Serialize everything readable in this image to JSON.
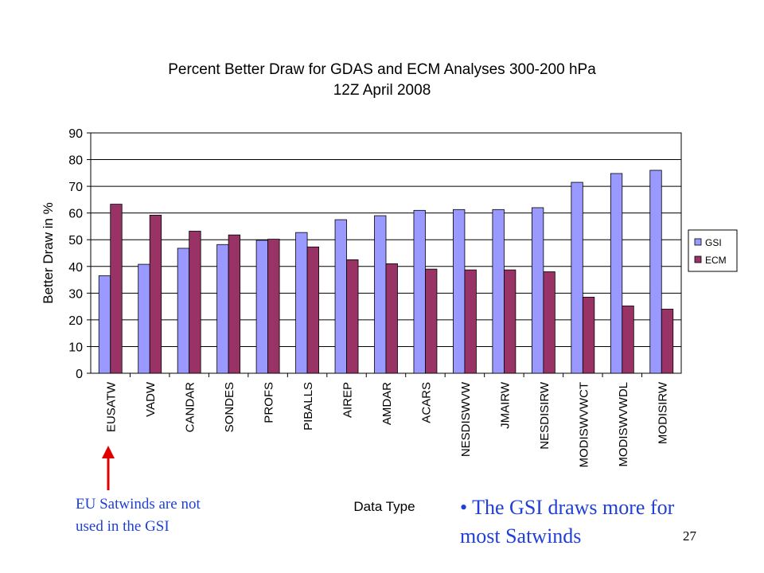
{
  "chart_data": {
    "type": "bar",
    "title": "Percent Better Draw for GDAS and ECM Analyses 300-200 hPa",
    "subtitle": "12Z April 2008",
    "xlabel": "Data Type",
    "ylabel": "Better Draw in %",
    "ylim": [
      0,
      90
    ],
    "yticks": [
      0,
      10,
      20,
      30,
      40,
      50,
      60,
      70,
      80,
      90
    ],
    "grid": true,
    "legend_position": "right",
    "categories": [
      "EUSATW",
      "VADW",
      "CANDAR",
      "SONDES",
      "PROFS",
      "PIBALLS",
      "AIREP",
      "AMDAR",
      "ACARS",
      "NESDISWVW",
      "JMAIRW",
      "NESDISIRW",
      "MODISWVWCT",
      "MODISWVWDL",
      "MODISIRW"
    ],
    "series": [
      {
        "name": "GSI",
        "color": "#9999ff",
        "values": [
          36.5,
          40.8,
          46.8,
          48.2,
          49.8,
          52.7,
          57.5,
          59.0,
          61.0,
          61.3,
          61.3,
          62.0,
          71.5,
          74.8,
          76.0
        ]
      },
      {
        "name": "ECM",
        "color": "#993366",
        "values": [
          63.3,
          59.2,
          53.2,
          51.8,
          50.2,
          47.3,
          42.5,
          41.0,
          39.0,
          38.7,
          38.7,
          38.0,
          28.5,
          25.2,
          24.0
        ]
      }
    ]
  },
  "annotations": {
    "eu_note_line1": "EU Satwinds are not",
    "eu_note_line2": "used in the GSI",
    "gsi_note_line1": "• The GSI draws more for",
    "gsi_note_line2": "most Satwinds",
    "arrow_color": "#e00000"
  },
  "slide_number": "27"
}
